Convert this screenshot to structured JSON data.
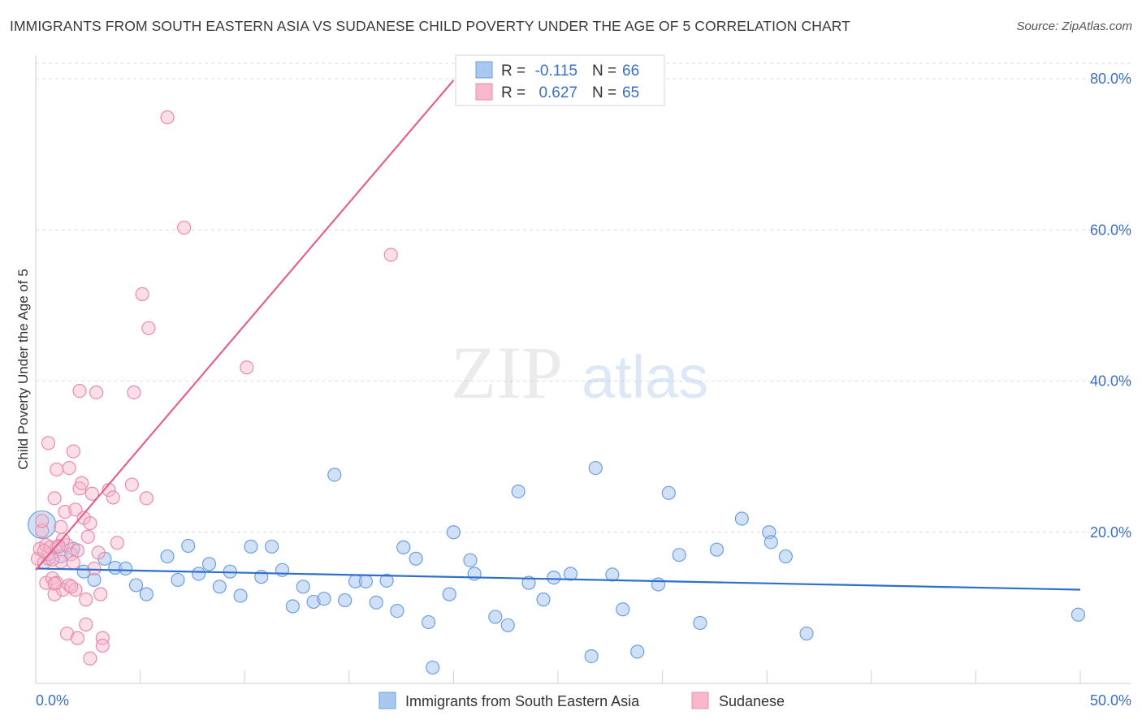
{
  "title": "IMMIGRANTS FROM SOUTH EASTERN ASIA VS SUDANESE CHILD POVERTY UNDER THE AGE OF 5 CORRELATION CHART",
  "source": "Source: ZipAtlas.com",
  "watermark": {
    "zip": "ZIP",
    "atlas": "atlas"
  },
  "colors": {
    "blue_fill": "#a9c8f0",
    "blue_stroke": "#6c9fe0",
    "blue_line": "#2f6fcc",
    "pink_fill": "#f7b8cc",
    "pink_stroke": "#ec8aaa",
    "pink_line": "#e5608e",
    "grid": "#dcdcdc",
    "axis_text": "#3a6fc4"
  },
  "legend": {
    "rows": [
      {
        "r_label": "R =",
        "r_value": "-0.115",
        "n_label": "N =",
        "n_value": "66",
        "color": "blue"
      },
      {
        "r_label": "R =",
        "r_value": "0.627",
        "n_label": "N =",
        "n_value": "65",
        "color": "pink"
      }
    ]
  },
  "chart_data": {
    "type": "scatter",
    "title": "IMMIGRANTS FROM SOUTH EASTERN ASIA VS SUDANESE CHILD POVERTY UNDER THE AGE OF 5 CORRELATION CHART",
    "xlabel": "",
    "ylabel": "Child Poverty Under the Age of 5",
    "xlim": [
      0,
      50
    ],
    "ylim": [
      0,
      80
    ],
    "x_tick_labels": [
      "0.0%",
      "50.0%"
    ],
    "y_tick_labels": [
      "20.0%",
      "40.0%",
      "60.0%",
      "80.0%"
    ],
    "y_ticks": [
      20,
      40,
      60,
      80
    ],
    "grid": true,
    "legend_position": "top-center",
    "series": [
      {
        "name": "Immigrants from South Eastern Asia",
        "color": "blue",
        "trend": {
          "x": [
            0,
            50
          ],
          "y": [
            15.2,
            12.4
          ]
        },
        "points": [
          [
            0.3,
            21.0
          ],
          [
            0.6,
            16.5
          ],
          [
            1.0,
            18.0
          ],
          [
            1.2,
            16.8
          ],
          [
            1.8,
            17.8
          ],
          [
            2.3,
            14.8
          ],
          [
            2.8,
            13.7
          ],
          [
            3.3,
            16.5
          ],
          [
            3.8,
            15.3
          ],
          [
            4.3,
            15.2
          ],
          [
            4.8,
            13.0
          ],
          [
            5.3,
            11.8
          ],
          [
            6.3,
            16.8
          ],
          [
            6.8,
            13.7
          ],
          [
            7.3,
            18.2
          ],
          [
            7.8,
            14.5
          ],
          [
            8.3,
            15.8
          ],
          [
            8.8,
            12.8
          ],
          [
            9.3,
            14.8
          ],
          [
            9.8,
            11.6
          ],
          [
            10.3,
            18.1
          ],
          [
            10.8,
            14.1
          ],
          [
            11.3,
            18.1
          ],
          [
            11.8,
            15.0
          ],
          [
            12.3,
            10.2
          ],
          [
            12.8,
            12.8
          ],
          [
            13.3,
            10.8
          ],
          [
            13.8,
            11.2
          ],
          [
            14.3,
            27.6
          ],
          [
            14.8,
            11.0
          ],
          [
            15.3,
            13.5
          ],
          [
            15.8,
            13.5
          ],
          [
            16.3,
            10.7
          ],
          [
            16.8,
            13.6
          ],
          [
            17.3,
            9.6
          ],
          [
            17.6,
            18.0
          ],
          [
            18.2,
            16.5
          ],
          [
            18.8,
            8.1
          ],
          [
            19.0,
            2.1
          ],
          [
            19.8,
            11.8
          ],
          [
            20.0,
            20.0
          ],
          [
            20.8,
            16.3
          ],
          [
            21.0,
            14.5
          ],
          [
            22.0,
            8.8
          ],
          [
            22.6,
            7.7
          ],
          [
            23.1,
            25.4
          ],
          [
            23.6,
            13.3
          ],
          [
            24.3,
            11.1
          ],
          [
            24.8,
            14.0
          ],
          [
            25.6,
            14.5
          ],
          [
            26.6,
            3.6
          ],
          [
            26.8,
            28.5
          ],
          [
            27.6,
            14.4
          ],
          [
            28.1,
            9.8
          ],
          [
            28.8,
            4.2
          ],
          [
            29.8,
            13.1
          ],
          [
            30.3,
            25.2
          ],
          [
            30.8,
            17.0
          ],
          [
            31.8,
            8.0
          ],
          [
            32.6,
            17.7
          ],
          [
            33.8,
            21.8
          ],
          [
            35.1,
            20.0
          ],
          [
            35.2,
            18.7
          ],
          [
            35.9,
            16.8
          ],
          [
            36.9,
            6.6
          ],
          [
            49.9,
            9.1
          ]
        ]
      },
      {
        "name": "Sudanese",
        "color": "pink",
        "trend": {
          "x": [
            0,
            20
          ],
          "y": [
            15.0,
            79.8
          ]
        },
        "points": [
          [
            0.1,
            16.5
          ],
          [
            0.2,
            17.8
          ],
          [
            0.3,
            20.2
          ],
          [
            0.4,
            16.0
          ],
          [
            0.5,
            18.3
          ],
          [
            0.5,
            13.3
          ],
          [
            0.6,
            17.1
          ],
          [
            0.6,
            31.8
          ],
          [
            0.7,
            18.0
          ],
          [
            0.8,
            13.9
          ],
          [
            0.9,
            11.8
          ],
          [
            0.9,
            24.5
          ],
          [
            1.0,
            28.3
          ],
          [
            1.0,
            13.3
          ],
          [
            1.1,
            18.2
          ],
          [
            1.2,
            20.7
          ],
          [
            1.2,
            16.1
          ],
          [
            1.3,
            12.4
          ],
          [
            1.4,
            22.7
          ],
          [
            1.5,
            18.3
          ],
          [
            1.5,
            6.6
          ],
          [
            1.6,
            28.5
          ],
          [
            1.6,
            13.0
          ],
          [
            1.7,
            17.1
          ],
          [
            1.8,
            30.7
          ],
          [
            1.8,
            16.0
          ],
          [
            1.9,
            23.0
          ],
          [
            1.9,
            12.4
          ],
          [
            2.0,
            6.0
          ],
          [
            2.1,
            38.7
          ],
          [
            2.1,
            25.8
          ],
          [
            2.2,
            26.5
          ],
          [
            2.3,
            21.9
          ],
          [
            2.4,
            11.1
          ],
          [
            2.4,
            7.8
          ],
          [
            2.5,
            19.4
          ],
          [
            2.6,
            21.2
          ],
          [
            2.6,
            3.3
          ],
          [
            2.7,
            25.1
          ],
          [
            2.8,
            15.2
          ],
          [
            2.9,
            38.5
          ],
          [
            3.0,
            17.3
          ],
          [
            3.1,
            11.8
          ],
          [
            3.2,
            6.0
          ],
          [
            3.2,
            5.0
          ],
          [
            3.5,
            25.6
          ],
          [
            3.7,
            24.6
          ],
          [
            3.9,
            18.6
          ],
          [
            4.6,
            26.3
          ],
          [
            4.7,
            38.5
          ],
          [
            5.1,
            51.5
          ],
          [
            5.3,
            24.5
          ],
          [
            5.4,
            47.0
          ],
          [
            6.3,
            74.9
          ],
          [
            7.1,
            60.3
          ],
          [
            10.1,
            41.8
          ],
          [
            17.0,
            56.7
          ],
          [
            1.3,
            19.0
          ],
          [
            1.7,
            12.8
          ],
          [
            0.9,
            13.2
          ],
          [
            0.4,
            17.5
          ],
          [
            0.3,
            21.5
          ],
          [
            2.0,
            17.6
          ],
          [
            0.8,
            16.4
          ],
          [
            1.1,
            18.1
          ]
        ]
      }
    ]
  },
  "bottom_legend": [
    {
      "label": "Immigrants from South Eastern Asia",
      "color": "blue"
    },
    {
      "label": "Sudanese",
      "color": "pink"
    }
  ]
}
